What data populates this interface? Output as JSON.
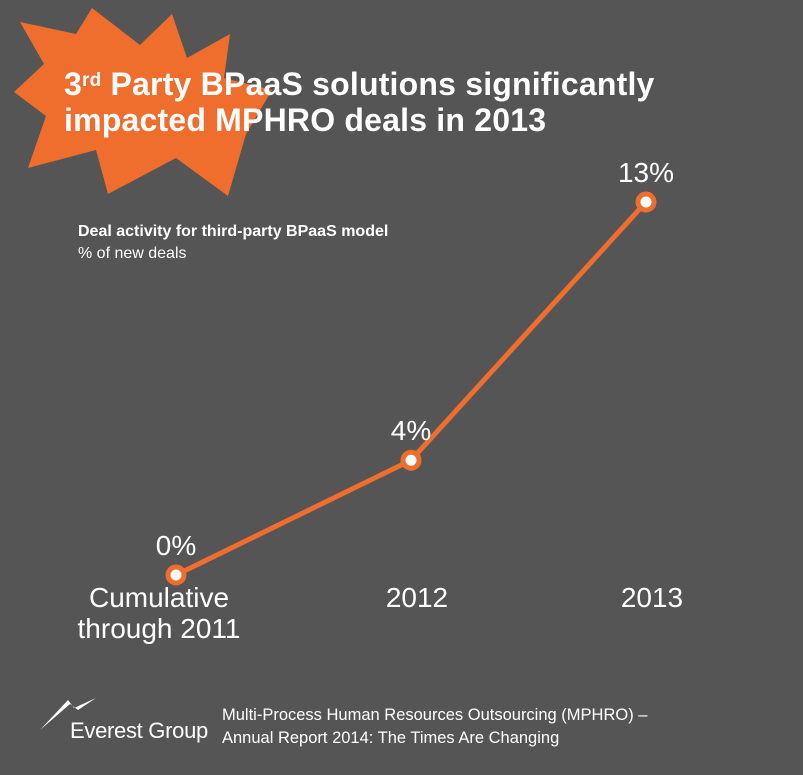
{
  "header": {
    "title_prefix": "3",
    "title_sup": "rd",
    "title_line1_rest": " Party BPaaS solutions significantly",
    "title_line2": "impacted MPHRO deals in 2013",
    "accent_color": "#EF6E2E"
  },
  "chart_data": {
    "type": "line",
    "subtitle": "Deal activity for third-party BPaaS model",
    "ylabel": "% of new deals",
    "categories": [
      "Cumulative through 2011",
      "2012",
      "2013"
    ],
    "category_lines": [
      [
        "Cumulative",
        "through 2011"
      ],
      [
        "2012"
      ],
      [
        "2013"
      ]
    ],
    "values": [
      0,
      4,
      13
    ],
    "data_labels": [
      "0%",
      "4%",
      "13%"
    ],
    "ylim": [
      0,
      13
    ],
    "grid": false,
    "line_color": "#EF6E2E"
  },
  "footer": {
    "logo_text": "Everest Group",
    "source_line1": "Multi-Process Human Resources Outsourcing (MPHRO) –",
    "source_line2": "Annual Report 2014: The Times Are Changing"
  }
}
